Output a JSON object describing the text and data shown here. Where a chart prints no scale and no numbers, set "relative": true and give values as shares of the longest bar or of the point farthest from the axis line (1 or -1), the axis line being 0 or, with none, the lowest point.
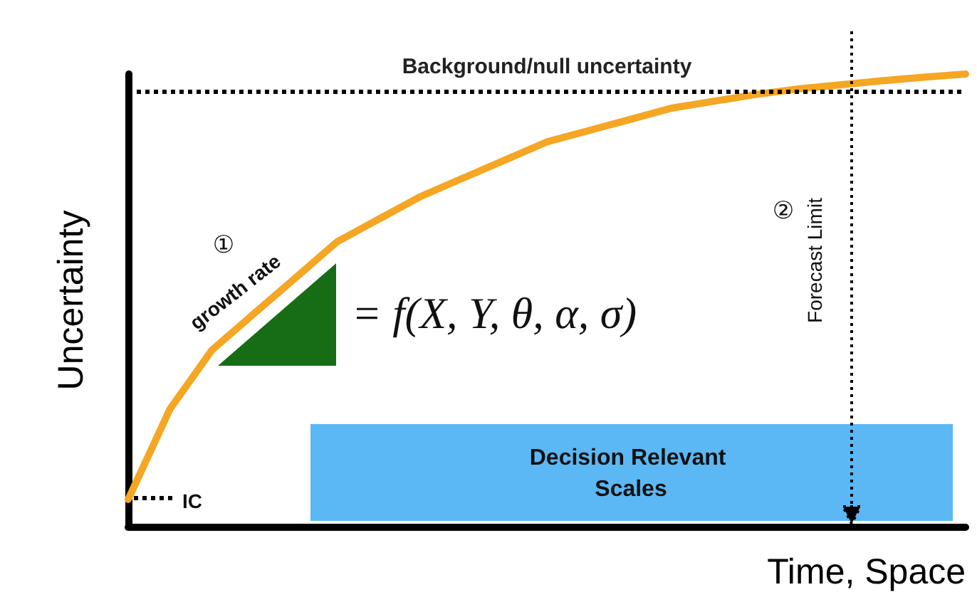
{
  "chart_data": {
    "type": "line",
    "relative": true,
    "xlabel": "Time, Space",
    "ylabel": "Uncertainty",
    "categories": [
      null,
      null,
      null,
      null,
      null,
      null,
      null,
      null,
      null,
      null,
      null,
      null,
      null,
      null,
      null,
      null,
      null,
      null,
      null,
      null,
      null
    ],
    "series": [
      {
        "color": "#f5a623",
        "values": [
          0.06,
          0.26,
          0.39,
          0.47,
          0.55,
          0.63,
          0.68,
          0.73,
          0.77,
          0.81,
          0.85,
          0.875,
          0.9,
          0.925,
          0.94,
          0.955,
          0.967,
          0.976,
          0.985,
          0.993,
          1.0
        ]
      }
    ],
    "ref_lines": [
      {
        "axis": "y",
        "value": 0.965,
        "label": "Background/null uncertainty",
        "line_style": "dotted",
        "color": "#000000"
      }
    ],
    "annotations": [
      "①",
      "growth rate",
      "= f(X, Y, θ, α, σ)",
      "②",
      "Forecast Limit",
      "Decision Relevant Scales",
      "IC"
    ],
    "grid": false,
    "marker": "none",
    "line_style": "solid"
  }
}
